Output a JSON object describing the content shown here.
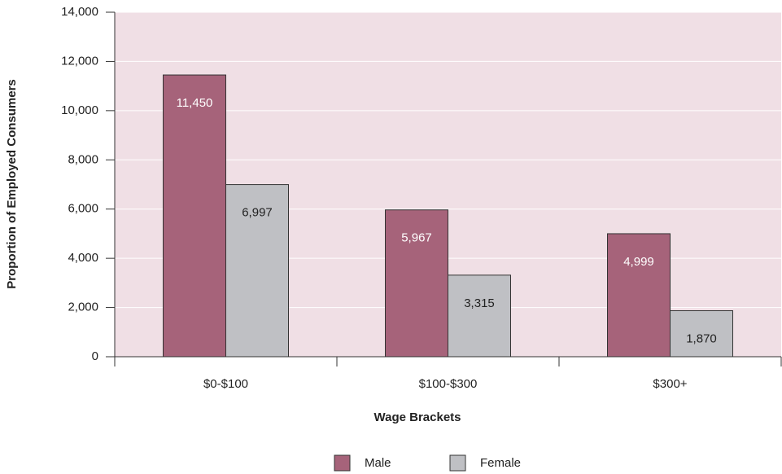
{
  "chart_data": {
    "type": "bar",
    "x_label": "Wage Brackets",
    "y_label": "Proportion of Employed Consumers",
    "categories": [
      "$0-$100",
      "$100-$300",
      "$300+"
    ],
    "series": [
      {
        "name": "Male",
        "color": "#a6637a",
        "values": [
          11450,
          5967,
          4999
        ],
        "value_labels": [
          "11,450",
          "5,967",
          "4,999"
        ]
      },
      {
        "name": "Female",
        "color": "#bfc0c4",
        "values": [
          6997,
          3315,
          1870
        ],
        "value_labels": [
          "6,997",
          "3,315",
          "1,870"
        ]
      }
    ],
    "ylim": [
      0,
      14000
    ],
    "yticks": [
      0,
      {
        "value": 2000,
        "label": "2,000"
      },
      {
        "value": 4000,
        "label": "4,000"
      },
      {
        "value": 6000,
        "label": "6,000"
      },
      {
        "value": 8000,
        "label": "8,000"
      },
      {
        "value": 10000,
        "label": "10,000"
      },
      {
        "value": 12000,
        "label": "12,000"
      },
      {
        "value": 14000,
        "label": "14,000"
      }
    ],
    "grid": true,
    "plot_background": "#f0dfe5",
    "legend": "bottom"
  }
}
